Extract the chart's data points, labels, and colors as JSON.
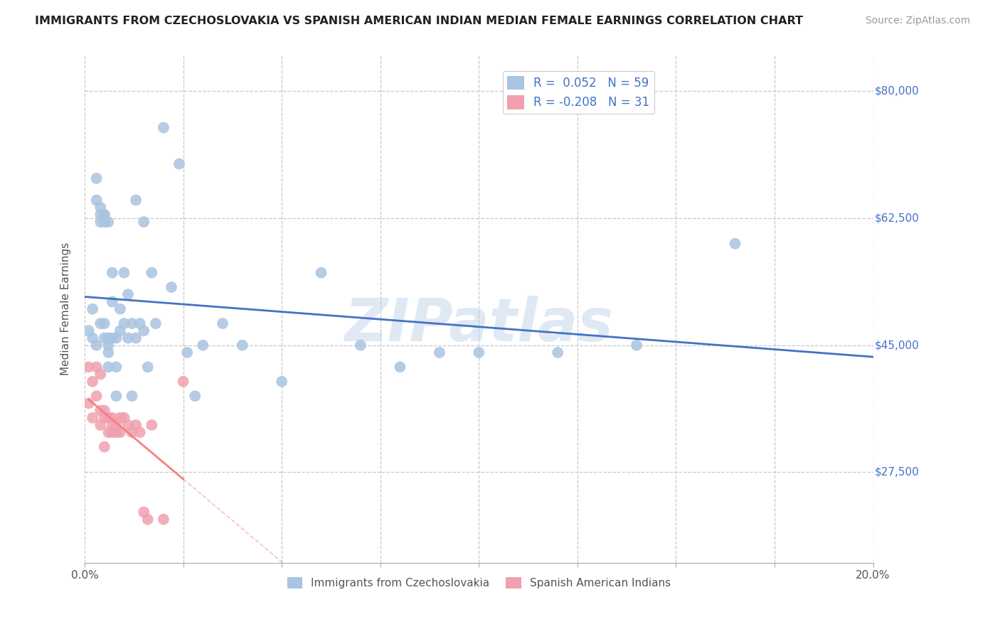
{
  "title": "IMMIGRANTS FROM CZECHOSLOVAKIA VS SPANISH AMERICAN INDIAN MEDIAN FEMALE EARNINGS CORRELATION CHART",
  "source": "Source: ZipAtlas.com",
  "ylabel": "Median Female Earnings",
  "xlim": [
    0.0,
    0.2
  ],
  "ylim": [
    15000,
    85000
  ],
  "yticks": [
    27500,
    45000,
    62500,
    80000
  ],
  "ytick_labels": [
    "$27,500",
    "$45,000",
    "$62,500",
    "$80,000"
  ],
  "xticks": [
    0.0,
    0.025,
    0.05,
    0.075,
    0.1,
    0.125,
    0.15,
    0.175,
    0.2
  ],
  "xtick_labels": [
    "0.0%",
    "",
    "",
    "",
    "",
    "",
    "",
    "",
    "20.0%"
  ],
  "legend_r1": "R =  0.052",
  "legend_n1": "N = 59",
  "legend_r2": "R = -0.208",
  "legend_n2": "N = 31",
  "watermark": "ZIPatlas",
  "color_blue": "#a8c4e0",
  "color_pink": "#f0a0b0",
  "line_color_blue": "#4472c4",
  "line_color_pink": "#f48080",
  "text_color_blue": "#4472c4",
  "background_color": "#ffffff",
  "grid_color": "#c8c8c8",
  "blue_points_x": [
    0.001,
    0.002,
    0.002,
    0.003,
    0.003,
    0.003,
    0.004,
    0.004,
    0.004,
    0.004,
    0.005,
    0.005,
    0.005,
    0.005,
    0.005,
    0.006,
    0.006,
    0.006,
    0.006,
    0.006,
    0.007,
    0.007,
    0.007,
    0.008,
    0.008,
    0.008,
    0.009,
    0.009,
    0.01,
    0.01,
    0.011,
    0.011,
    0.012,
    0.012,
    0.013,
    0.013,
    0.014,
    0.015,
    0.015,
    0.016,
    0.017,
    0.018,
    0.02,
    0.022,
    0.024,
    0.026,
    0.028,
    0.03,
    0.035,
    0.04,
    0.05,
    0.06,
    0.07,
    0.08,
    0.09,
    0.1,
    0.12,
    0.14,
    0.165
  ],
  "blue_points_y": [
    47000,
    50000,
    46000,
    68000,
    65000,
    45000,
    63000,
    64000,
    62000,
    48000,
    63000,
    63000,
    48000,
    62000,
    46000,
    62000,
    46000,
    45000,
    44000,
    42000,
    55000,
    51000,
    46000,
    46000,
    42000,
    38000,
    50000,
    47000,
    55000,
    48000,
    52000,
    46000,
    48000,
    38000,
    65000,
    46000,
    48000,
    62000,
    47000,
    42000,
    55000,
    48000,
    75000,
    53000,
    70000,
    44000,
    38000,
    45000,
    48000,
    45000,
    40000,
    55000,
    45000,
    42000,
    44000,
    44000,
    44000,
    45000,
    59000
  ],
  "pink_points_x": [
    0.001,
    0.001,
    0.002,
    0.002,
    0.003,
    0.003,
    0.004,
    0.004,
    0.004,
    0.005,
    0.005,
    0.005,
    0.006,
    0.006,
    0.007,
    0.007,
    0.007,
    0.008,
    0.008,
    0.009,
    0.009,
    0.01,
    0.011,
    0.012,
    0.013,
    0.014,
    0.015,
    0.016,
    0.017,
    0.02,
    0.025
  ],
  "pink_points_y": [
    37000,
    42000,
    40000,
    35000,
    42000,
    38000,
    36000,
    34000,
    41000,
    35000,
    31000,
    36000,
    35000,
    33000,
    35000,
    34000,
    33000,
    34000,
    33000,
    35000,
    33000,
    35000,
    34000,
    33000,
    34000,
    33000,
    22000,
    21000,
    34000,
    21000,
    40000
  ]
}
